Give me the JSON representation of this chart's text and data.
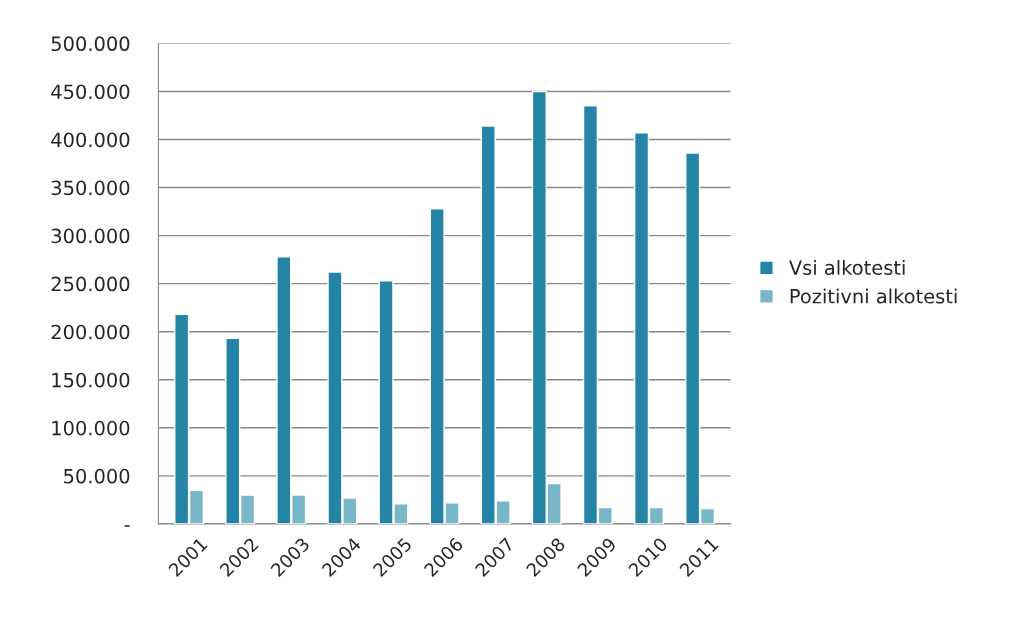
{
  "chart_data": {
    "type": "bar",
    "categories": [
      "2001",
      "2002",
      "2003",
      "2004",
      "2005",
      "2006",
      "2007",
      "2008",
      "2009",
      "2010",
      "2011"
    ],
    "series": [
      {
        "name": "Vsi alkotesti",
        "color": "#2384a6",
        "values": [
          218000,
          193000,
          278000,
          262000,
          253000,
          328000,
          414000,
          450000,
          435000,
          407000,
          386000
        ]
      },
      {
        "name": "Pozitivni alkotesti",
        "color": "#78b6c8",
        "values": [
          35000,
          30000,
          30000,
          27000,
          21000,
          22000,
          24000,
          42000,
          17000,
          17000,
          16000
        ]
      }
    ],
    "ylim": [
      0,
      500000
    ],
    "yticks": [
      {
        "value": 0,
        "label": "-"
      },
      {
        "value": 50000,
        "label": "50.000"
      },
      {
        "value": 100000,
        "label": "100.000"
      },
      {
        "value": 150000,
        "label": "150.000"
      },
      {
        "value": 200000,
        "label": "200.000"
      },
      {
        "value": 250000,
        "label": "250.000"
      },
      {
        "value": 300000,
        "label": "300.000"
      },
      {
        "value": 350000,
        "label": "350.000"
      },
      {
        "value": 400000,
        "label": "400.000"
      },
      {
        "value": 450000,
        "label": "450.000"
      },
      {
        "value": 500000,
        "label": "500.000"
      }
    ],
    "grid": "y",
    "legend": "right"
  }
}
